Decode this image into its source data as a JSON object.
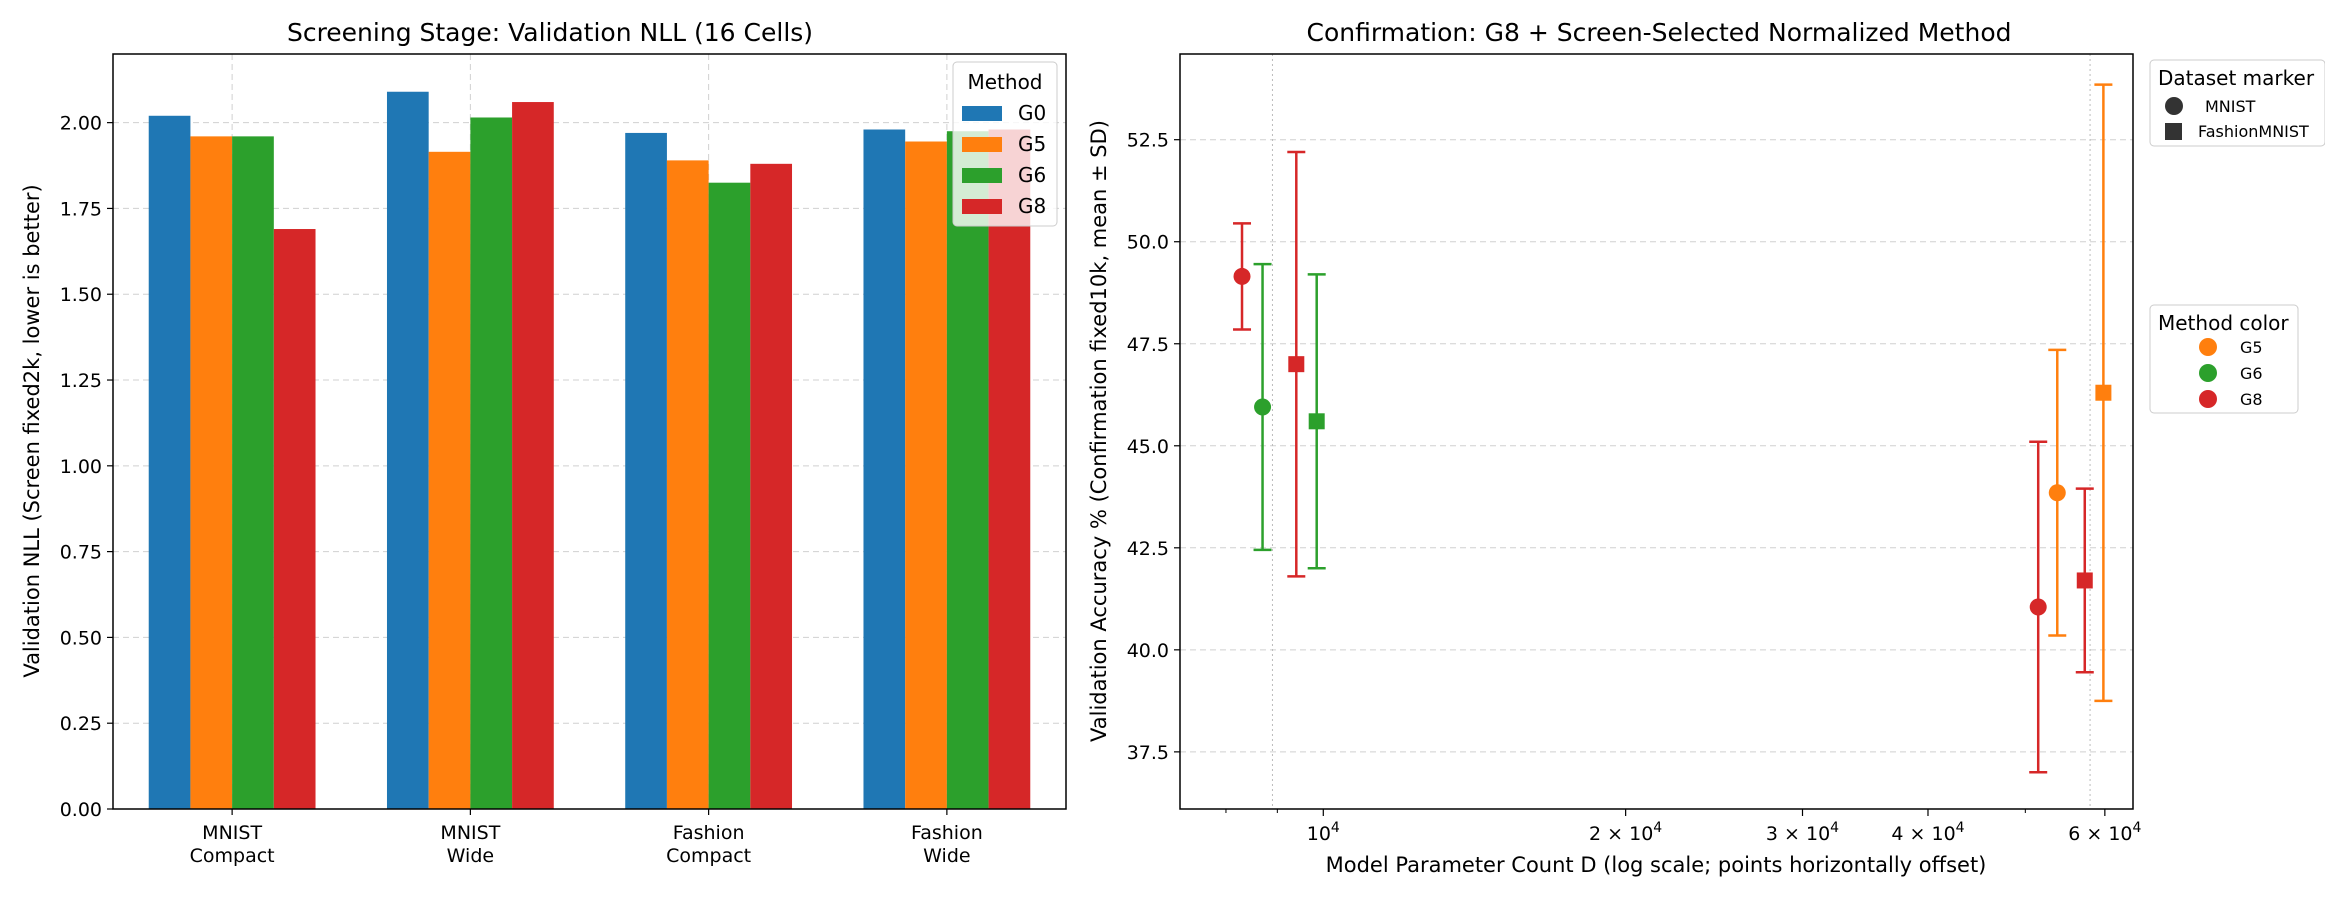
{
  "chart_data": [
    {
      "type": "bar",
      "title": "Screening Stage: Validation NLL (16 Cells)",
      "xlabel": "",
      "ylabel": "Validation NLL (Screen fixed2k, lower is better)",
      "categories": [
        [
          "MNIST",
          "Compact"
        ],
        [
          "MNIST",
          "Wide"
        ],
        [
          "Fashion",
          "Compact"
        ],
        [
          "Fashion",
          "Wide"
        ]
      ],
      "series": [
        {
          "name": "G0",
          "color": "#1f77b4",
          "values": [
            2.02,
            2.09,
            1.97,
            1.98
          ]
        },
        {
          "name": "G5",
          "color": "#ff7f0e",
          "values": [
            1.96,
            1.915,
            1.89,
            1.945
          ]
        },
        {
          "name": "G6",
          "color": "#2ca02c",
          "values": [
            1.96,
            2.015,
            1.825,
            1.975
          ]
        },
        {
          "name": "G8",
          "color": "#d62728",
          "values": [
            1.69,
            2.06,
            1.88,
            1.98
          ]
        }
      ],
      "ylim": [
        0,
        2.2
      ],
      "yticks": [
        "0.00",
        "0.25",
        "0.50",
        "0.75",
        "1.00",
        "1.25",
        "1.50",
        "1.75",
        "2.00"
      ],
      "grid": true,
      "legend": {
        "title": "Method",
        "placement": "top-right"
      }
    },
    {
      "type": "scatter",
      "title": "Confirmation: G8 + Screen-Selected Normalized Method",
      "xlabel": "Model Parameter Count D (log scale; points horizontally offset)",
      "ylabel": "Validation Accuracy % (Confirmation fixed10k, mean ± SD)",
      "xscale": "log",
      "xlim": [
        7200,
        64000
      ],
      "ylim": [
        36.1,
        54.6
      ],
      "yticks": [
        "37.5",
        "40.0",
        "42.5",
        "45.0",
        "47.5",
        "50.0",
        "52.5"
      ],
      "xticks": [
        {
          "value": 10000,
          "base": "10",
          "exp": "4"
        },
        {
          "value": 20000,
          "base": "2 × 10",
          "exp": "4"
        },
        {
          "value": 30000,
          "base": "3 × 10",
          "exp": "4"
        },
        {
          "value": 40000,
          "base": "4 × 10",
          "exp": "4"
        },
        {
          "value": 60000,
          "base": "6 × 10",
          "exp": "4"
        }
      ],
      "grid": true,
      "reference_lines_x": [
        8900,
        58000
      ],
      "points": [
        {
          "method": "G8",
          "dataset": "MNIST",
          "x": 8300,
          "y": 49.15,
          "sd": 1.3
        },
        {
          "method": "G6",
          "dataset": "MNIST",
          "x": 8700,
          "y": 45.95,
          "sd": 3.5
        },
        {
          "method": "G8",
          "dataset": "FashionMNIST",
          "x": 9400,
          "y": 47.0,
          "sd": 5.2
        },
        {
          "method": "G6",
          "dataset": "FashionMNIST",
          "x": 9850,
          "y": 45.6,
          "sd": 3.6
        },
        {
          "method": "G8",
          "dataset": "MNIST",
          "x": 51500,
          "y": 41.05,
          "sd": 4.05
        },
        {
          "method": "G5",
          "dataset": "MNIST",
          "x": 53800,
          "y": 43.85,
          "sd": 3.5
        },
        {
          "method": "G8",
          "dataset": "FashionMNIST",
          "x": 57300,
          "y": 41.7,
          "sd": 2.25
        },
        {
          "method": "G5",
          "dataset": "FashionMNIST",
          "x": 59800,
          "y": 46.3,
          "sd": 7.55
        }
      ],
      "colors": {
        "G5": "#ff7f0e",
        "G6": "#2ca02c",
        "G8": "#d62728"
      },
      "legend_markers": {
        "title": "Dataset marker",
        "items": [
          {
            "label": "MNIST",
            "marker": "circle"
          },
          {
            "label": "FashionMNIST",
            "marker": "square"
          }
        ],
        "placement": "outside-upper-right"
      },
      "legend_colors": {
        "title": "Method color",
        "items": [
          "G5",
          "G6",
          "G8"
        ],
        "placement": "outside-right"
      }
    }
  ]
}
